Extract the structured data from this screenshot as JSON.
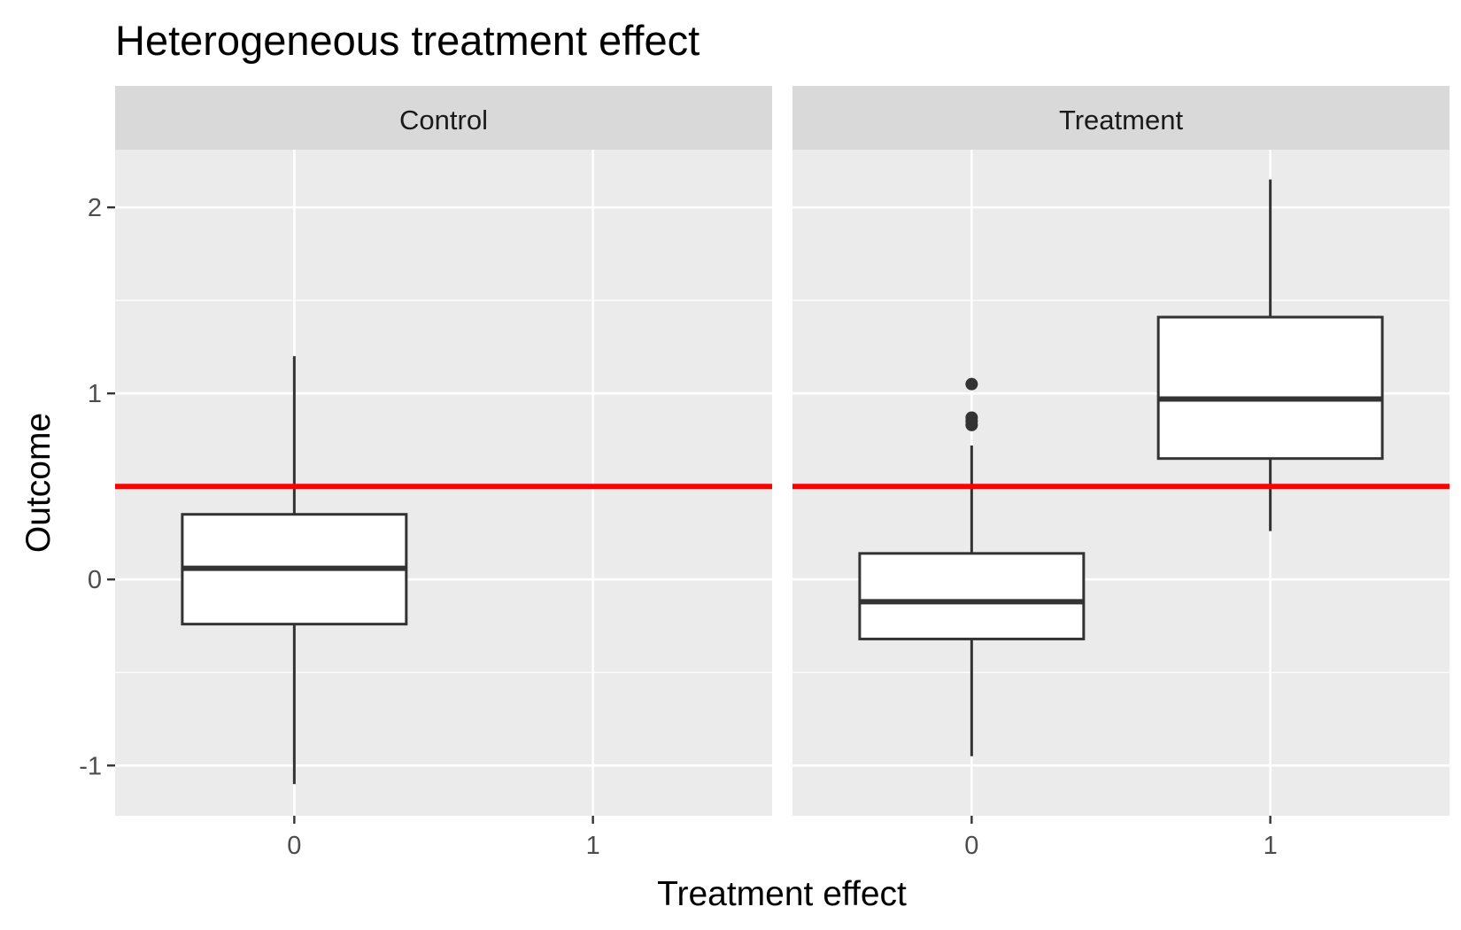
{
  "chart_data": {
    "type": "boxplot",
    "title": "Heterogeneous treatment effect",
    "xlabel": "Treatment effect",
    "ylabel": "Outcome",
    "x_categories": [
      "0",
      "1"
    ],
    "ylim": [
      -1.27,
      2.31
    ],
    "y_ticks": [
      -1,
      0,
      1,
      2
    ],
    "y_tick_labels": [
      "-1",
      "0",
      "1",
      "2"
    ],
    "grid": true,
    "reference_line": {
      "y": 0.5,
      "color": "#ff0000"
    },
    "facets": [
      {
        "label": "Control",
        "boxes": [
          {
            "x": "0",
            "lower_whisker": -1.1,
            "q1": -0.24,
            "median": 0.06,
            "q3": 0.35,
            "upper_whisker": 1.2,
            "outliers": []
          }
        ]
      },
      {
        "label": "Treatment",
        "boxes": [
          {
            "x": "0",
            "lower_whisker": -0.95,
            "q1": -0.32,
            "median": -0.12,
            "q3": 0.14,
            "upper_whisker": 0.72,
            "outliers": [
              0.83,
              0.85,
              0.87,
              1.05
            ]
          },
          {
            "x": "1",
            "lower_whisker": 0.26,
            "q1": 0.65,
            "median": 0.97,
            "q3": 1.41,
            "upper_whisker": 2.15,
            "outliers": []
          }
        ]
      }
    ]
  },
  "colors": {
    "panel_bg": "#ebebeb",
    "strip_bg": "#d9d9d9",
    "grid": "#ffffff",
    "box_line": "#333333",
    "box_fill": "#ffffff",
    "reference_line": "#ff0000",
    "tick_mark": "#333333"
  }
}
